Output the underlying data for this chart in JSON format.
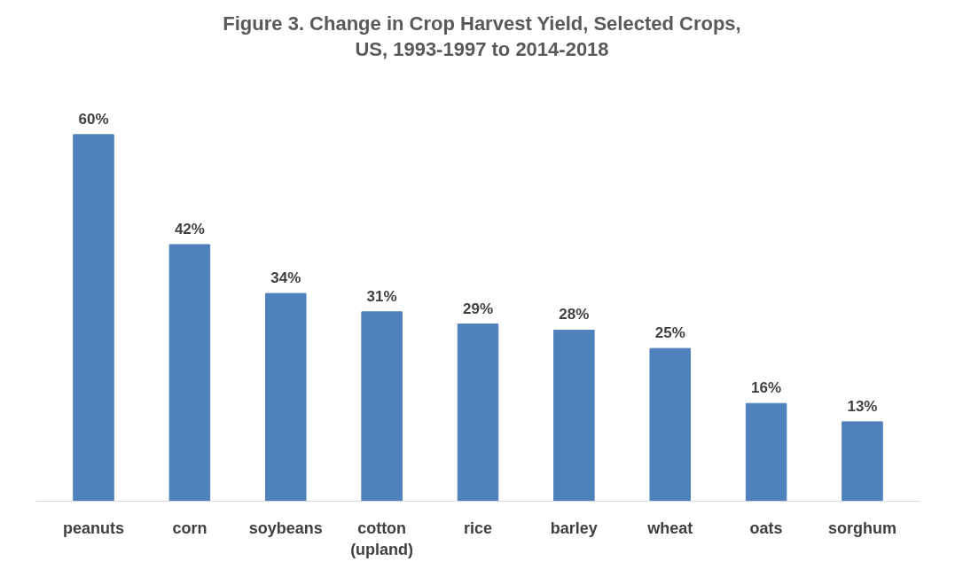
{
  "chart_data": {
    "type": "bar",
    "title": "Figure 3.  Change in Crop Harvest Yield, Selected Crops,\nUS, 1993-1997 to 2014-2018",
    "categories": [
      "peanuts",
      "corn",
      "soybeans",
      "cotton\n(upland)",
      "rice",
      "barley",
      "wheat",
      "oats",
      "sorghum"
    ],
    "values": [
      60,
      42,
      34,
      31,
      29,
      28,
      25,
      16,
      13
    ],
    "value_labels": [
      "60%",
      "42%",
      "34%",
      "31%",
      "29%",
      "28%",
      "25%",
      "16%",
      "13%"
    ],
    "color": "#4f81bd",
    "grid": false
  }
}
